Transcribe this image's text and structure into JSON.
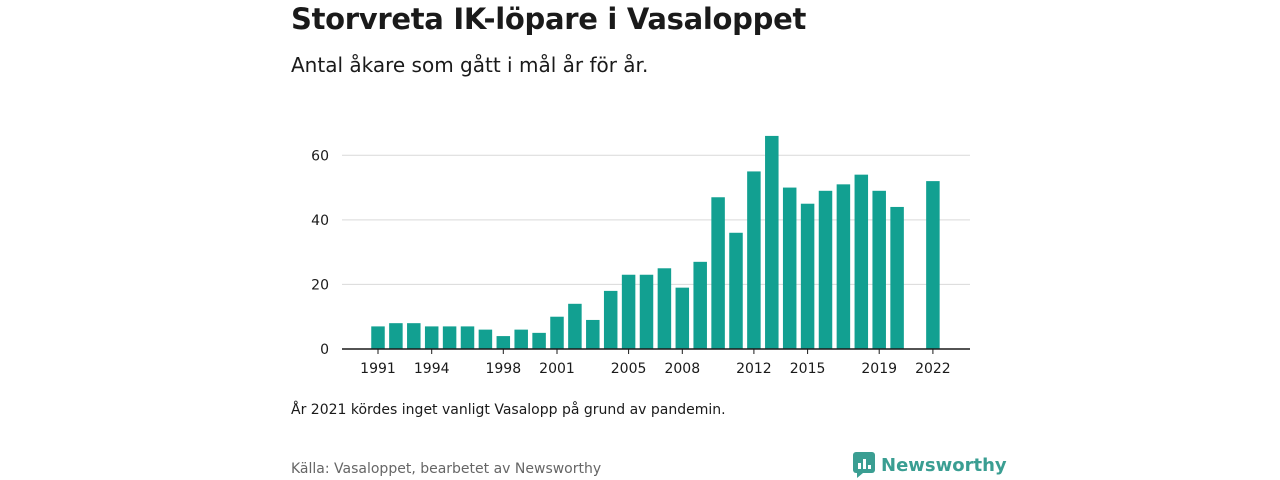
{
  "title": "Storvreta IK-löpare i Vasaloppet",
  "subtitle": "Antal åkare som gått i mål år för år.",
  "note": "År 2021 kördes inget vanligt Vasalopp på grund av pandemin.",
  "source": "Källa: Vasaloppet, bearbetet av Newsworthy",
  "brand": {
    "name": "Newsworthy",
    "icon": "newsworthy-logo-icon"
  },
  "colors": {
    "bar": "#12a091",
    "grid": "#d9d9d9",
    "axis": "#1a1a1a",
    "brand": "#3a9e92"
  },
  "chart_data": {
    "type": "bar",
    "categories": [
      1991,
      1992,
      1993,
      1994,
      1995,
      1996,
      1997,
      1998,
      1999,
      2000,
      2001,
      2002,
      2003,
      2004,
      2005,
      2006,
      2007,
      2008,
      2009,
      2010,
      2011,
      2012,
      2013,
      2014,
      2015,
      2016,
      2017,
      2018,
      2019,
      2020,
      2021,
      2022
    ],
    "values": [
      7,
      8,
      8,
      7,
      7,
      7,
      6,
      4,
      6,
      5,
      10,
      14,
      9,
      18,
      23,
      23,
      25,
      19,
      27,
      47,
      36,
      55,
      66,
      50,
      45,
      49,
      51,
      54,
      49,
      44,
      null,
      52
    ],
    "x_tick_labels": [
      "1991",
      "1994",
      "1998",
      "2001",
      "2005",
      "2008",
      "2012",
      "2015",
      "2019",
      "2022"
    ],
    "y_ticks": [
      0,
      20,
      40,
      60
    ],
    "ylim": [
      0,
      70
    ],
    "grid": true,
    "legend": "none"
  }
}
